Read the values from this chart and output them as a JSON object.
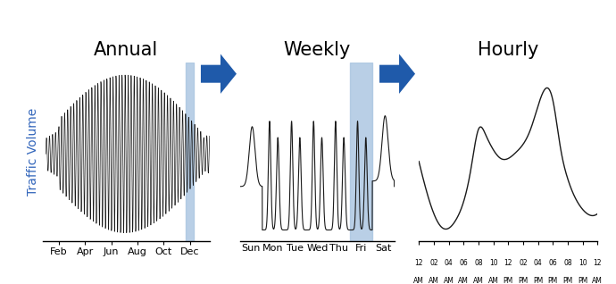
{
  "title_annual": "Annual",
  "title_weekly": "Weekly",
  "title_hourly": "Hourly",
  "ylabel": "Traffic Volume",
  "annual_xticks": [
    "Feb",
    "Apr",
    "Jun",
    "Aug",
    "Oct",
    "Dec"
  ],
  "weekly_xticks": [
    "Sun",
    "Mon",
    "Tue",
    "Wed",
    "Thu",
    "Fri",
    "Sat"
  ],
  "hourly_xticks_line1": [
    "12",
    "02",
    "04",
    "06",
    "08",
    "10",
    "12",
    "02",
    "04",
    "06",
    "08",
    "10",
    "12"
  ],
  "hourly_xticks_line2": [
    "AM",
    "AM",
    "AM",
    "AM",
    "AM",
    "AM",
    "PM",
    "PM",
    "PM",
    "PM",
    "PM",
    "PM",
    "AM"
  ],
  "highlight_color": "#a8c4e0",
  "arrow_color": "#1f5aaa",
  "line_color": "#1a1a1a",
  "title_color": "#000000",
  "ylabel_color": "#3366bb",
  "background_color": "#ffffff",
  "title_fontsize": 15,
  "ylabel_fontsize": 10
}
